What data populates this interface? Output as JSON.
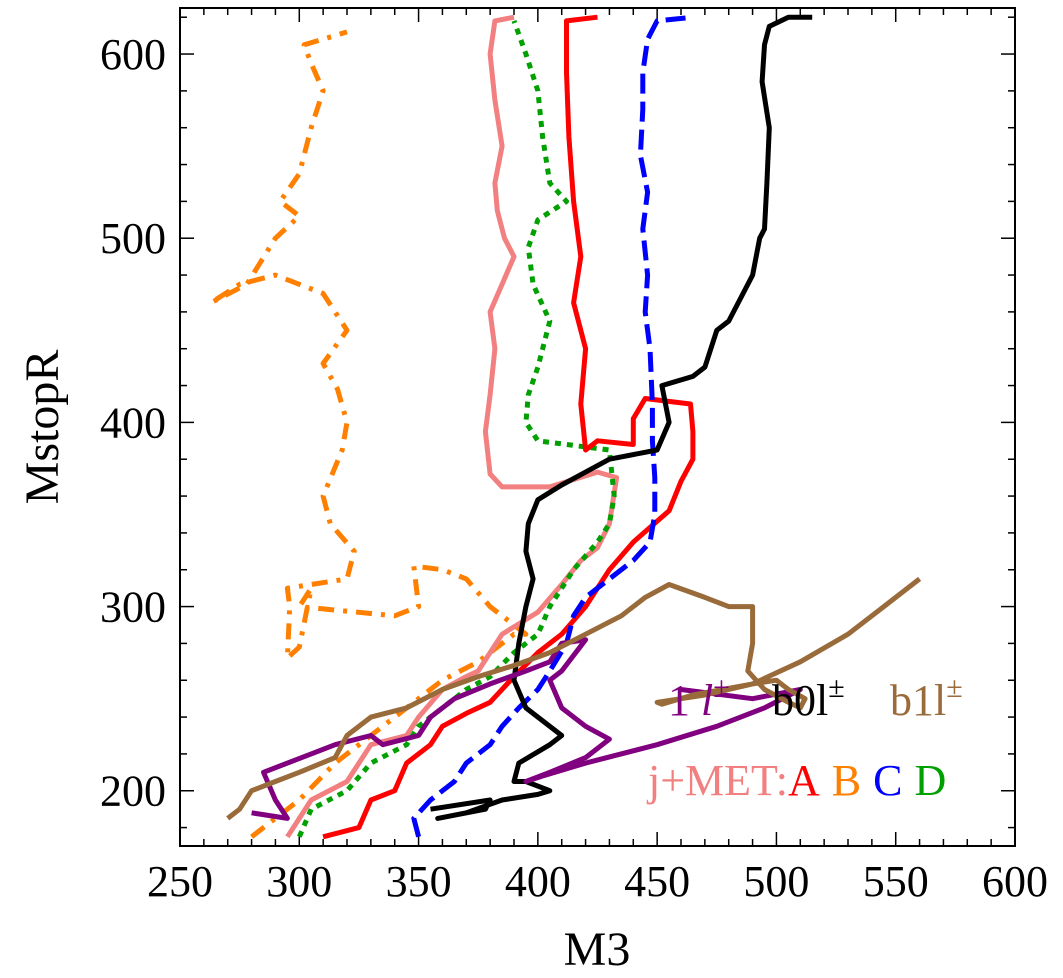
{
  "chart_data": {
    "type": "line",
    "title": "",
    "xlabel": "M3",
    "ylabel": "MstopR",
    "xlim": [
      250,
      600
    ],
    "ylim": [
      170,
      625
    ],
    "x_ticks": [
      "250",
      "300",
      "350",
      "400",
      "450",
      "500",
      "550",
      "600"
    ],
    "y_ticks": [
      "200",
      "300",
      "400",
      "500",
      "600"
    ],
    "grid": false,
    "legend": {
      "row1": [
        {
          "text": "1 ",
          "italic_part": "l",
          "sup": "±",
          "color": "#800080"
        },
        {
          "text": "b0l",
          "sup": "±",
          "color": "#000000"
        },
        {
          "text": "b1l",
          "sup": "±",
          "color": "#9a6b3a"
        }
      ],
      "row2": [
        {
          "text": "j+MET:",
          "color": "#f28080"
        },
        {
          "text": "A",
          "color": "#ff0000"
        },
        {
          "text": "B",
          "color": "#ff8000"
        },
        {
          "text": "C",
          "color": "#0000ff"
        },
        {
          "text": "D",
          "color": "#00a000"
        }
      ]
    },
    "series": [
      {
        "color": "#ff8000",
        "dash": "16 9 4 9",
        "width": 5,
        "points": [
          [
            280,
            175
          ],
          [
            290,
            185
          ],
          [
            300,
            195
          ],
          [
            315,
            215
          ],
          [
            330,
            230
          ],
          [
            345,
            245
          ],
          [
            360,
            260
          ],
          [
            375,
            270
          ],
          [
            390,
            285
          ],
          [
            395,
            285
          ],
          [
            380,
            300
          ],
          [
            370,
            315
          ],
          [
            360,
            320
          ],
          [
            348,
            322
          ],
          [
            350,
            300
          ],
          [
            340,
            295
          ],
          [
            300,
            300
          ],
          [
            305,
            310
          ],
          [
            300,
            278
          ],
          [
            295,
            272
          ],
          [
            296,
            300
          ],
          [
            295,
            310
          ],
          [
            320,
            315
          ],
          [
            323,
            330
          ],
          [
            313,
            345
          ],
          [
            310,
            360
          ],
          [
            318,
            385
          ],
          [
            320,
            400
          ],
          [
            316,
            418
          ],
          [
            310,
            432
          ],
          [
            320,
            450
          ],
          [
            310,
            470
          ],
          [
            290,
            480
          ],
          [
            275,
            475
          ],
          [
            263,
            465
          ],
          [
            278,
            475
          ],
          [
            290,
            500
          ],
          [
            300,
            512
          ],
          [
            292,
            520
          ],
          [
            300,
            535
          ],
          [
            305,
            560
          ],
          [
            310,
            580
          ],
          [
            305,
            595
          ],
          [
            302,
            605
          ],
          [
            315,
            610
          ],
          [
            320,
            612
          ]
        ]
      },
      {
        "color": "#f28080",
        "dash": "",
        "width": 5,
        "points": [
          [
            295,
            175
          ],
          [
            305,
            195
          ],
          [
            320,
            205
          ],
          [
            330,
            225
          ],
          [
            345,
            230
          ],
          [
            350,
            240
          ],
          [
            360,
            255
          ],
          [
            370,
            262
          ],
          [
            375,
            265
          ],
          [
            385,
            285
          ],
          [
            400,
            297
          ],
          [
            410,
            312
          ],
          [
            418,
            325
          ],
          [
            425,
            332
          ],
          [
            430,
            345
          ],
          [
            433,
            370
          ],
          [
            425,
            373
          ],
          [
            405,
            365
          ],
          [
            385,
            365
          ],
          [
            380,
            372
          ],
          [
            378,
            395
          ],
          [
            380,
            415
          ],
          [
            382,
            440
          ],
          [
            380,
            460
          ],
          [
            385,
            475
          ],
          [
            390,
            490
          ],
          [
            386,
            500
          ],
          [
            383,
            515
          ],
          [
            382,
            530
          ],
          [
            385,
            550
          ],
          [
            382,
            575
          ],
          [
            380,
            600
          ],
          [
            382,
            618
          ],
          [
            390,
            620
          ]
        ]
      },
      {
        "color": "#00a000",
        "dash": "6 6",
        "width": 5,
        "points": [
          [
            300,
            175
          ],
          [
            305,
            190
          ],
          [
            320,
            200
          ],
          [
            330,
            215
          ],
          [
            345,
            225
          ],
          [
            350,
            235
          ],
          [
            360,
            245
          ],
          [
            370,
            255
          ],
          [
            380,
            262
          ],
          [
            390,
            275
          ],
          [
            400,
            285
          ],
          [
            405,
            300
          ],
          [
            415,
            320
          ],
          [
            425,
            335
          ],
          [
            430,
            345
          ],
          [
            432,
            360
          ],
          [
            430,
            385
          ],
          [
            400,
            390
          ],
          [
            395,
            400
          ],
          [
            396,
            415
          ],
          [
            400,
            430
          ],
          [
            405,
            455
          ],
          [
            398,
            475
          ],
          [
            396,
            495
          ],
          [
            400,
            510
          ],
          [
            412,
            520
          ],
          [
            405,
            530
          ],
          [
            402,
            555
          ],
          [
            400,
            580
          ],
          [
            395,
            600
          ],
          [
            390,
            618
          ]
        ]
      },
      {
        "color": "#ff0000",
        "dash": "",
        "width": 5,
        "points": [
          [
            310,
            175
          ],
          [
            325,
            180
          ],
          [
            330,
            195
          ],
          [
            340,
            200
          ],
          [
            345,
            215
          ],
          [
            355,
            225
          ],
          [
            360,
            235
          ],
          [
            370,
            242
          ],
          [
            380,
            248
          ],
          [
            390,
            262
          ],
          [
            400,
            275
          ],
          [
            410,
            285
          ],
          [
            420,
            300
          ],
          [
            430,
            320
          ],
          [
            440,
            335
          ],
          [
            455,
            352
          ],
          [
            460,
            368
          ],
          [
            465,
            380
          ],
          [
            465,
            395
          ],
          [
            464,
            410
          ],
          [
            445,
            413
          ],
          [
            440,
            402
          ],
          [
            440,
            388
          ],
          [
            425,
            390
          ],
          [
            420,
            385
          ],
          [
            418,
            410
          ],
          [
            420,
            440
          ],
          [
            415,
            465
          ],
          [
            418,
            490
          ],
          [
            415,
            520
          ],
          [
            413,
            555
          ],
          [
            412,
            590
          ],
          [
            412,
            618
          ],
          [
            425,
            620
          ]
        ]
      },
      {
        "color": "#0000ff",
        "dash": "20 8",
        "width": 5,
        "points": [
          [
            350,
            175
          ],
          [
            348,
            185
          ],
          [
            355,
            195
          ],
          [
            365,
            205
          ],
          [
            370,
            215
          ],
          [
            380,
            225
          ],
          [
            385,
            235
          ],
          [
            392,
            245
          ],
          [
            400,
            255
          ],
          [
            405,
            265
          ],
          [
            412,
            280
          ],
          [
            415,
            295
          ],
          [
            420,
            305
          ],
          [
            430,
            315
          ],
          [
            440,
            325
          ],
          [
            447,
            335
          ],
          [
            449,
            350
          ],
          [
            449,
            370
          ],
          [
            448,
            390
          ],
          [
            448,
            410
          ],
          [
            447,
            440
          ],
          [
            445,
            460
          ],
          [
            446,
            480
          ],
          [
            444,
            505
          ],
          [
            446,
            525
          ],
          [
            443,
            545
          ],
          [
            444,
            570
          ],
          [
            444,
            590
          ],
          [
            446,
            608
          ],
          [
            450,
            618
          ],
          [
            465,
            620
          ]
        ]
      },
      {
        "color": "#000000",
        "dash": "",
        "width": 5,
        "points": [
          [
            355,
            190
          ],
          [
            380,
            195
          ],
          [
            378,
            190
          ],
          [
            358,
            185
          ],
          [
            370,
            188
          ],
          [
            385,
            195
          ],
          [
            400,
            198
          ],
          [
            405,
            200
          ],
          [
            395,
            205
          ],
          [
            390,
            205
          ],
          [
            392,
            215
          ],
          [
            405,
            225
          ],
          [
            410,
            230
          ],
          [
            395,
            245
          ],
          [
            390,
            260
          ],
          [
            392,
            280
          ],
          [
            395,
            300
          ],
          [
            398,
            315
          ],
          [
            395,
            330
          ],
          [
            396,
            345
          ],
          [
            400,
            358
          ],
          [
            410,
            366
          ],
          [
            420,
            373
          ],
          [
            430,
            380
          ],
          [
            450,
            385
          ],
          [
            455,
            400
          ],
          [
            452,
            420
          ],
          [
            465,
            425
          ],
          [
            470,
            430
          ],
          [
            475,
            450
          ],
          [
            480,
            455
          ],
          [
            490,
            480
          ],
          [
            493,
            500
          ],
          [
            495,
            505
          ],
          [
            496,
            530
          ],
          [
            497,
            560
          ],
          [
            494,
            585
          ],
          [
            495,
            605
          ],
          [
            497,
            615
          ],
          [
            505,
            620
          ],
          [
            515,
            620
          ]
        ]
      },
      {
        "color": "#800080",
        "dash": "",
        "width": 5,
        "points": [
          [
            280,
            188
          ],
          [
            295,
            185
          ],
          [
            290,
            195
          ],
          [
            285,
            210
          ],
          [
            305,
            220
          ],
          [
            315,
            225
          ],
          [
            330,
            230
          ],
          [
            335,
            225
          ],
          [
            350,
            230
          ],
          [
            355,
            240
          ],
          [
            365,
            250
          ],
          [
            380,
            258
          ],
          [
            395,
            265
          ],
          [
            405,
            270
          ],
          [
            410,
            280
          ],
          [
            420,
            282
          ],
          [
            410,
            265
          ],
          [
            405,
            260
          ],
          [
            410,
            245
          ],
          [
            420,
            235
          ],
          [
            430,
            228
          ],
          [
            420,
            218
          ],
          [
            405,
            210
          ],
          [
            395,
            205
          ],
          [
            402,
            208
          ],
          [
            420,
            215
          ],
          [
            450,
            225
          ],
          [
            475,
            235
          ],
          [
            495,
            245
          ],
          [
            510,
            255
          ],
          [
            490,
            250
          ],
          [
            460,
            255
          ]
        ]
      },
      {
        "color": "#9a6b3a",
        "dash": "",
        "width": 5,
        "points": [
          [
            270,
            185
          ],
          [
            275,
            190
          ],
          [
            280,
            200
          ],
          [
            290,
            205
          ],
          [
            300,
            210
          ],
          [
            315,
            218
          ],
          [
            320,
            230
          ],
          [
            330,
            240
          ],
          [
            345,
            245
          ],
          [
            360,
            255
          ],
          [
            375,
            262
          ],
          [
            390,
            268
          ],
          [
            405,
            275
          ],
          [
            420,
            285
          ],
          [
            435,
            295
          ],
          [
            445,
            305
          ],
          [
            455,
            312
          ],
          [
            470,
            305
          ],
          [
            480,
            300
          ],
          [
            490,
            300
          ],
          [
            490,
            280
          ],
          [
            488,
            265
          ],
          [
            495,
            255
          ],
          [
            505,
            248
          ],
          [
            510,
            245
          ],
          [
            512,
            250
          ],
          [
            505,
            255
          ],
          [
            500,
            260
          ],
          [
            490,
            258
          ],
          [
            480,
            255
          ],
          [
            470,
            252
          ],
          [
            460,
            250
          ],
          [
            450,
            248
          ],
          [
            452,
            247
          ],
          [
            465,
            252
          ],
          [
            490,
            258
          ],
          [
            510,
            270
          ],
          [
            530,
            285
          ],
          [
            545,
            300
          ],
          [
            560,
            315
          ]
        ]
      }
    ]
  }
}
